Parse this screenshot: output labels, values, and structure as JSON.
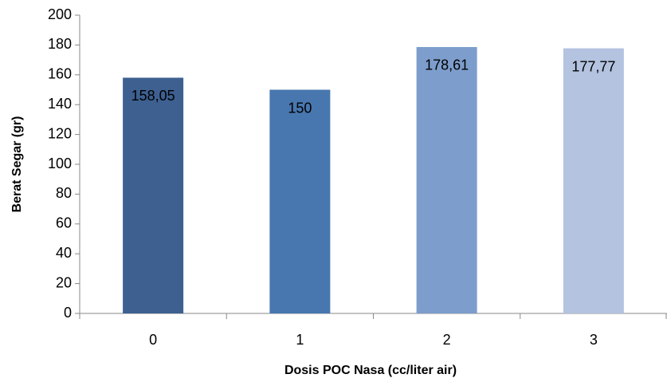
{
  "chart_data": {
    "type": "bar",
    "x_label": "Dosis POC Nasa (cc/liter air)",
    "y_label": "Berat Segar (gr)",
    "categories": [
      "0",
      "1",
      "2",
      "3"
    ],
    "values": [
      158.05,
      150,
      178.61,
      177.77
    ],
    "value_labels": [
      "158,05",
      "150",
      "178,61",
      "177,77"
    ],
    "colors": [
      "#3d6091",
      "#4877b0",
      "#7d9dcc",
      "#b3c3e0"
    ],
    "ylim": [
      0,
      200
    ],
    "yticks": [
      0,
      20,
      40,
      60,
      80,
      100,
      120,
      140,
      160,
      180,
      200
    ]
  }
}
